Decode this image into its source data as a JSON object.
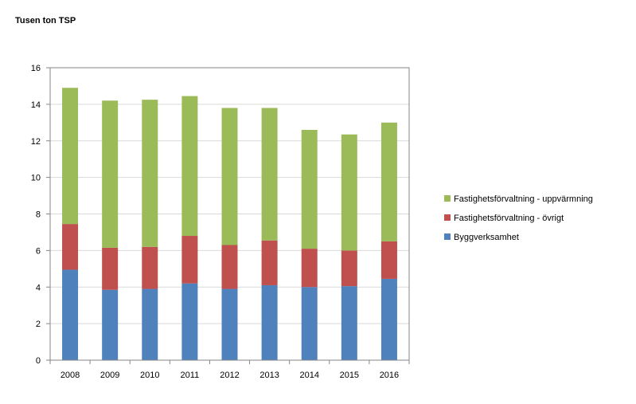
{
  "chart_data": {
    "type": "bar",
    "stacked": true,
    "unit_label": "Tusen ton TSP",
    "categories": [
      "2008",
      "2009",
      "2010",
      "2011",
      "2012",
      "2013",
      "2014",
      "2015",
      "2016"
    ],
    "series": [
      {
        "name": "Byggverksamhet",
        "color": "#4f81bd",
        "values": [
          4.95,
          3.85,
          3.9,
          4.2,
          3.9,
          4.1,
          4.0,
          4.05,
          4.45
        ]
      },
      {
        "name": "Fastighetsförvaltning - övrigt",
        "color": "#c0504d",
        "values": [
          2.5,
          2.3,
          2.3,
          2.6,
          2.4,
          2.45,
          2.1,
          1.95,
          2.05
        ]
      },
      {
        "name": "Fastighetsförvaltning - uppvärmning",
        "color": "#9bbb59",
        "values": [
          7.45,
          8.05,
          8.05,
          7.65,
          7.5,
          7.25,
          6.5,
          6.35,
          6.5
        ]
      }
    ],
    "ylim": [
      0,
      16
    ],
    "yticks": [
      0,
      2,
      4,
      6,
      8,
      10,
      12,
      14,
      16
    ],
    "grid": true,
    "legend_position": "right"
  }
}
